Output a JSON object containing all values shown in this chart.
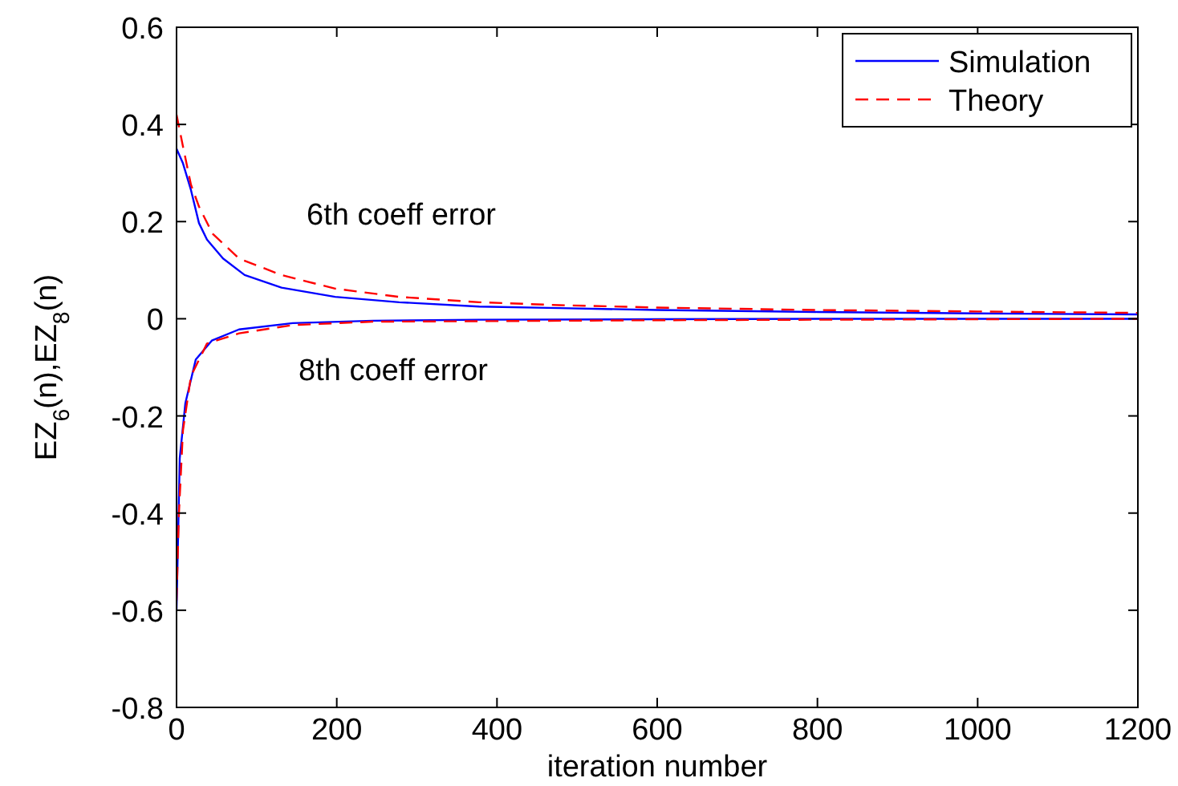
{
  "chart_data": {
    "type": "line",
    "xlabel": "iteration number",
    "ylabel": "EZ$_{6}$(n),EZ$_{8}$(n)",
    "xlim": [
      0,
      1200
    ],
    "ylim": [
      -0.8,
      0.6
    ],
    "xticks": [
      0,
      200,
      400,
      600,
      800,
      1000,
      1200
    ],
    "yticks": [
      -0.8,
      -0.6,
      -0.4,
      -0.2,
      0,
      0.2,
      0.4,
      0.6
    ],
    "grid": false,
    "legend": "top right",
    "marker": "none",
    "annotations": [
      "6th coeff error",
      "8th coeff error"
    ],
    "series": [
      {
        "name": "Simulation",
        "color": "#0000ff",
        "line_style": "solid",
        "x": [
          0,
          8,
          18,
          28,
          38,
          58,
          85,
          131,
          198,
          278,
          378,
          478,
          600,
          800,
          1000,
          1200
        ],
        "values": [
          0.35,
          0.32,
          0.265,
          0.197,
          0.163,
          0.124,
          0.09,
          0.064,
          0.045,
          0.034,
          0.025,
          0.022,
          0.018,
          0.014,
          0.011,
          0.009
        ]
      },
      {
        "name": "Theory",
        "color": "#ff0000",
        "line_style": "dashed",
        "x": [
          0,
          8,
          18,
          28,
          45,
          78,
          131,
          198,
          278,
          378,
          478,
          600,
          800,
          1000,
          1200
        ],
        "values": [
          0.42,
          0.355,
          0.276,
          0.231,
          0.175,
          0.124,
          0.09,
          0.062,
          0.045,
          0.034,
          0.028,
          0.023,
          0.018,
          0.015,
          0.012
        ]
      },
      {
        "color": "#0000ff",
        "line_style": "solid",
        "x": [
          0,
          4,
          11,
          24,
          44,
          78,
          145,
          245,
          378,
          600,
          800,
          1000,
          1200
        ],
        "values": [
          -0.6,
          -0.287,
          -0.174,
          -0.084,
          -0.045,
          -0.022,
          -0.009,
          -0.004,
          -0.002,
          -0.001,
          0,
          0,
          0
        ]
      },
      {
        "color": "#ff0000",
        "line_style": "dashed",
        "x": [
          0,
          3,
          8,
          18,
          38,
          78,
          145,
          245,
          378,
          600,
          800,
          1000,
          1200
        ],
        "values": [
          -0.58,
          -0.4,
          -0.23,
          -0.118,
          -0.051,
          -0.03,
          -0.013,
          -0.006,
          -0.005,
          -0.003,
          -0.002,
          -0.001,
          0
        ]
      }
    ]
  }
}
